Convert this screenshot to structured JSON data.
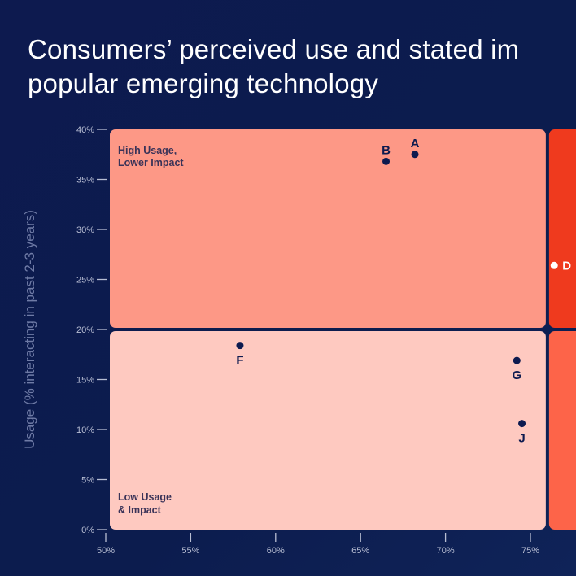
{
  "title_lines": [
    "Consumers’ perceived use and stated im",
    "popular emerging technology"
  ],
  "chart_data": {
    "type": "scatter",
    "title": "Consumers’ perceived use and stated im… popular emerging technology",
    "ylabel": "Usage (% interacting in past 2-3 years)",
    "xlabel": "",
    "xlim": [
      50,
      77
    ],
    "ylim": [
      0,
      40
    ],
    "x_ticks": [
      "50%",
      "55%",
      "60%",
      "65%",
      "70%",
      "75%"
    ],
    "x_tick_values": [
      50,
      55,
      60,
      65,
      70,
      75
    ],
    "y_ticks": [
      "0%",
      "5%",
      "10%",
      "15%",
      "20%",
      "25%",
      "30%",
      "35%",
      "40%"
    ],
    "y_tick_values": [
      0,
      5,
      10,
      15,
      20,
      25,
      30,
      35,
      40
    ],
    "grid": false,
    "quadrant_split": {
      "x": 76,
      "y": 20
    },
    "quadrants": [
      {
        "name": "top-left",
        "label": [
          "High Usage,",
          "Lower Impact"
        ],
        "color": "#fd9886"
      },
      {
        "name": "bottom-left",
        "label": [
          "Low Usage",
          "& Impact"
        ],
        "color": "#fec9c0"
      },
      {
        "name": "top-right",
        "label": [],
        "color": "#ef3a1e"
      },
      {
        "name": "bottom-right",
        "label": [],
        "color": "#fd6449"
      }
    ],
    "points": [
      {
        "label": "A",
        "x": 68.2,
        "y": 37.5
      },
      {
        "label": "B",
        "x": 66.5,
        "y": 36.8
      },
      {
        "label": "D",
        "x": 76.4,
        "y": 26.4
      },
      {
        "label": "F",
        "x": 57.9,
        "y": 18.4
      },
      {
        "label": "G",
        "x": 74.2,
        "y": 16.9
      },
      {
        "label": "J",
        "x": 74.5,
        "y": 10.6
      }
    ],
    "point_color": "#0d1a4f",
    "highlight_point_color": "#ffffff"
  }
}
